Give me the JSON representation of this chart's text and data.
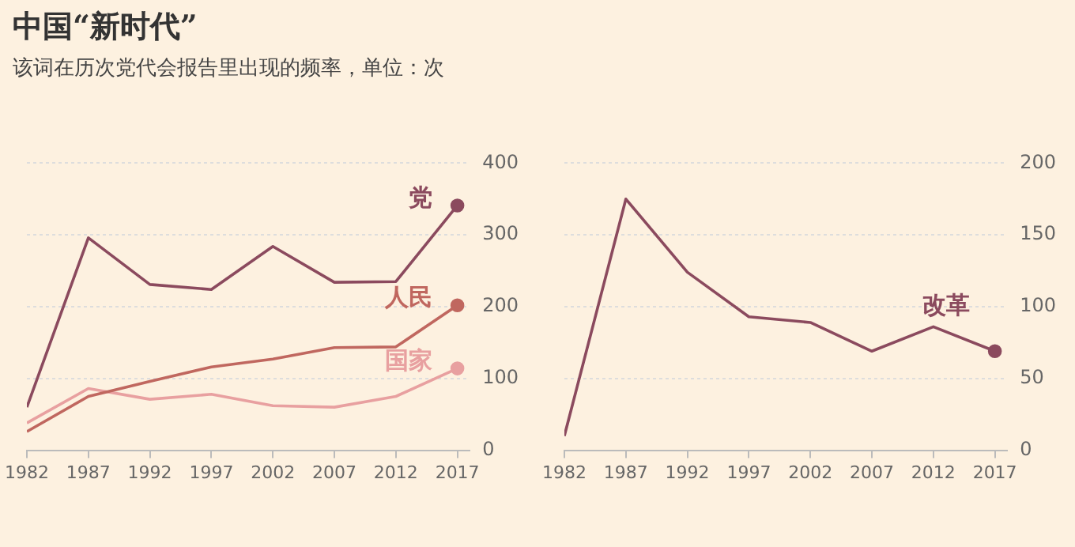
{
  "chart_data": [
    {
      "type": "line",
      "title": "中国“新时代”",
      "subtitle": "该词在历次党代会报告里出现的频率，单位：次",
      "x": [
        1982,
        1987,
        1992,
        1997,
        2002,
        2007,
        2012,
        2017
      ],
      "xlim": [
        1982,
        2018
      ],
      "xticks": [
        1982,
        1987,
        1992,
        1997,
        2002,
        2007,
        2012,
        2017
      ],
      "ylim": [
        0,
        400
      ],
      "yticks": [
        0,
        100,
        200,
        300,
        400
      ],
      "grid": "y",
      "legend": false,
      "series": [
        {
          "name": "党",
          "color": "#8b4a5e",
          "values": [
            60,
            296,
            231,
            224,
            284,
            234,
            235,
            341
          ]
        },
        {
          "name": "人民",
          "color": "#c0675f",
          "values": [
            26,
            75,
            96,
            116,
            127,
            143,
            144,
            202
          ]
        },
        {
          "name": "国家",
          "color": "#e8a0a0",
          "values": [
            38,
            86,
            71,
            78,
            62,
            60,
            75,
            114
          ]
        }
      ]
    },
    {
      "type": "line",
      "x": [
        1982,
        1987,
        1992,
        1997,
        2002,
        2007,
        2012,
        2017
      ],
      "xlim": [
        1982,
        2018
      ],
      "xticks": [
        1982,
        1987,
        1992,
        1997,
        2002,
        2007,
        2012,
        2017
      ],
      "ylim": [
        0,
        200
      ],
      "yticks": [
        0,
        50,
        100,
        150,
        200
      ],
      "grid": "y",
      "legend": false,
      "series": [
        {
          "name": "改革",
          "color": "#8b4a5e",
          "values": [
            10,
            175,
            124,
            93,
            89,
            69,
            86,
            69
          ]
        }
      ]
    }
  ]
}
